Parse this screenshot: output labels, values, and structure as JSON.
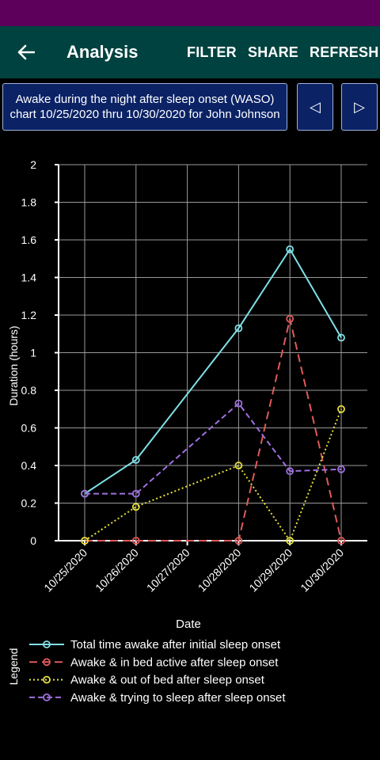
{
  "app_bar": {
    "title": "Analysis",
    "filter_label": "FILTER",
    "share_label": "SHARE",
    "refresh_label": "REFRESH"
  },
  "chart_header": {
    "title": "Awake during the night after sleep onset (WASO) chart 10/25/2020 thru 10/30/2020 for John Johnson",
    "prev_symbol": "◁",
    "next_symbol": "▷"
  },
  "chart_data": {
    "type": "line",
    "title": "Awake during the night after sleep onset (WASO) chart 10/25/2020 thru 10/30/2020 for John Johnson",
    "xlabel": "Date",
    "ylabel": "Duration (hours)",
    "x": [
      "10/25/2020",
      "10/26/2020",
      "10/27/2020",
      "10/28/2020",
      "10/29/2020",
      "10/30/2020"
    ],
    "ylim": [
      0,
      2
    ],
    "yticks": [
      "0",
      "0.2",
      "0.4",
      "0.6",
      "0.8",
      "1",
      "1.2",
      "1.4",
      "1.6",
      "1.8",
      "2"
    ],
    "grid": true,
    "legend_title": "Legend",
    "legend_position": "bottom",
    "series": [
      {
        "name": "Total time awake after initial sleep onset",
        "color": "#7fe0e6",
        "dash": "solid",
        "points": [
          [
            "10/25/2020",
            0.25
          ],
          [
            "10/26/2020",
            0.43
          ],
          [
            "10/28/2020",
            1.13
          ],
          [
            "10/29/2020",
            1.55
          ],
          [
            "10/30/2020",
            1.08
          ]
        ]
      },
      {
        "name": "Awake & in bed active after sleep onset",
        "color": "#e05a5a",
        "dash": "dashed",
        "points": [
          [
            "10/25/2020",
            0
          ],
          [
            "10/26/2020",
            0
          ],
          [
            "10/28/2020",
            0
          ],
          [
            "10/29/2020",
            1.18
          ],
          [
            "10/30/2020",
            0
          ]
        ]
      },
      {
        "name": "Awake & out of bed after sleep onset",
        "color": "#e6e03a",
        "dash": "dotted",
        "points": [
          [
            "10/25/2020",
            0
          ],
          [
            "10/26/2020",
            0.18
          ],
          [
            "10/28/2020",
            0.4
          ],
          [
            "10/29/2020",
            0
          ],
          [
            "10/30/2020",
            0.7
          ]
        ]
      },
      {
        "name": "Awake & trying to sleep after sleep onset",
        "color": "#a070e0",
        "dash": "dashdot",
        "points": [
          [
            "10/25/2020",
            0.25
          ],
          [
            "10/26/2020",
            0.25
          ],
          [
            "10/28/2020",
            0.73
          ],
          [
            "10/29/2020",
            0.37
          ],
          [
            "10/30/2020",
            0.38
          ]
        ]
      }
    ]
  }
}
